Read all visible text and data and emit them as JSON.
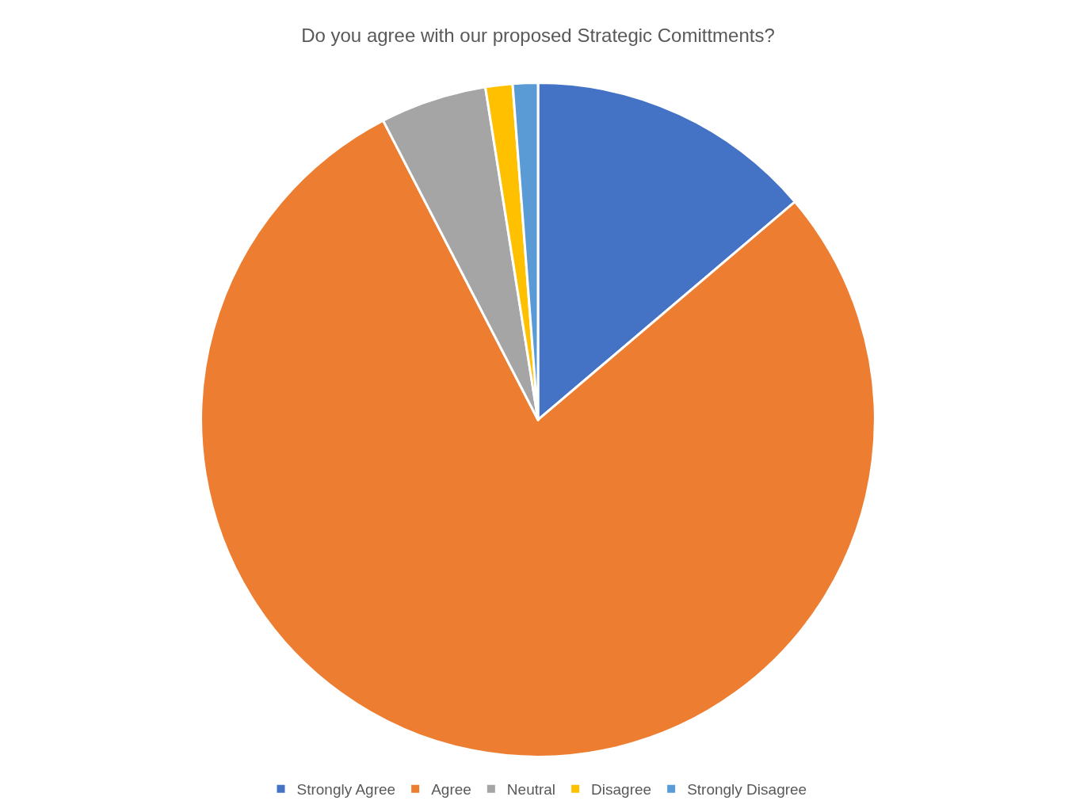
{
  "chart_data": {
    "type": "pie",
    "title": "Do you agree with our proposed Strategic Comittments?",
    "categories": [
      "Strongly Agree",
      "Agree",
      "Neutral",
      "Disagree",
      "Strongly Disagree"
    ],
    "values": [
      13.8,
      78.6,
      5.1,
      1.3,
      1.2
    ],
    "colors": [
      "#4472c4",
      "#ed7d31",
      "#a5a5a5",
      "#ffc000",
      "#5b9bd5"
    ],
    "legend": "bottom"
  }
}
